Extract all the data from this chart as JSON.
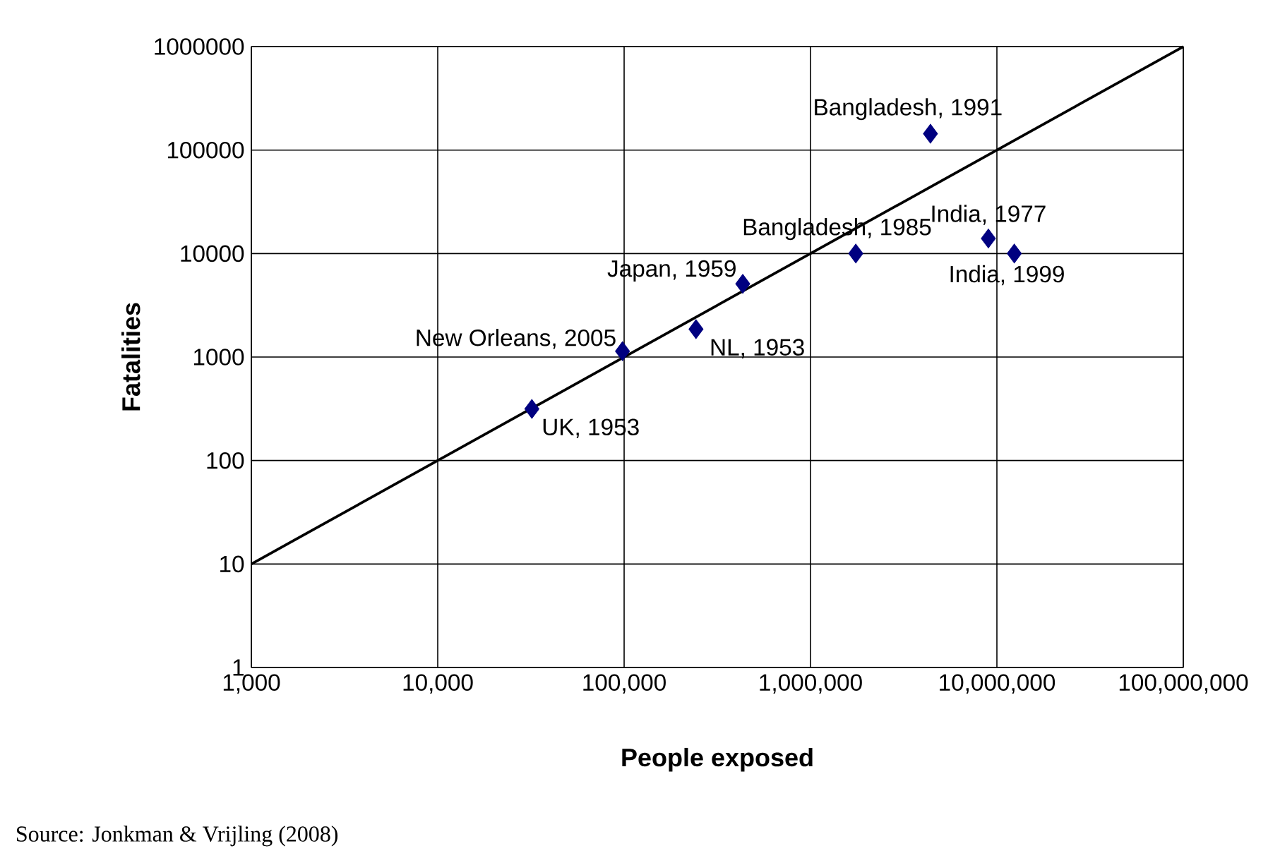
{
  "chart_data": {
    "type": "scatter",
    "xlabel": "People exposed",
    "ylabel": "Fatalities",
    "log": "xy",
    "grid": true,
    "xlim": [
      1000,
      100000000
    ],
    "ylim": [
      1,
      1000000
    ],
    "xticks": [
      {
        "value": 1000,
        "label": "1,000"
      },
      {
        "value": 10000,
        "label": "10,000"
      },
      {
        "value": 100000,
        "label": "100,000"
      },
      {
        "value": 1000000,
        "label": "1,000,000"
      },
      {
        "value": 10000000,
        "label": "10,000,000"
      },
      {
        "value": 100000000,
        "label": "100,000,000"
      }
    ],
    "yticks": [
      1,
      10,
      100,
      1000,
      10000,
      100000,
      1000000
    ],
    "series": [
      {
        "color": "#000080",
        "marker": "diamond",
        "x": [
          32000,
          98000,
          243000,
          433000,
          1750000,
          4400000,
          9000000,
          12400000
        ],
        "values": [
          315,
          1140,
          1860,
          5100,
          10000,
          144000,
          14000,
          10000
        ]
      },
      {
        "type": "line",
        "color": "#000000",
        "marker": "none",
        "line_style": "solid",
        "x": [
          1000,
          100000000
        ],
        "values": [
          10,
          1000000
        ]
      }
    ],
    "annotations": [
      {
        "text": "UK, 1953",
        "x": 32000,
        "y": 315
      },
      {
        "text": "New Orleans, 2005",
        "x": 98000,
        "y": 1140
      },
      {
        "text": "NL, 1953",
        "x": 243000,
        "y": 1860
      },
      {
        "text": "Japan, 1959",
        "x": 433000,
        "y": 5100
      },
      {
        "text": "Bangladesh, 1985",
        "x": 1750000,
        "y": 10000
      },
      {
        "text": "Bangladesh, 1991",
        "x": 4400000,
        "y": 144000
      },
      {
        "text": "India, 1977",
        "x": 9000000,
        "y": 14000
      },
      {
        "text": "India, 1999",
        "x": 12400000,
        "y": 10000
      },
      "Source: Jonkman & Vrijling (2008)"
    ]
  }
}
